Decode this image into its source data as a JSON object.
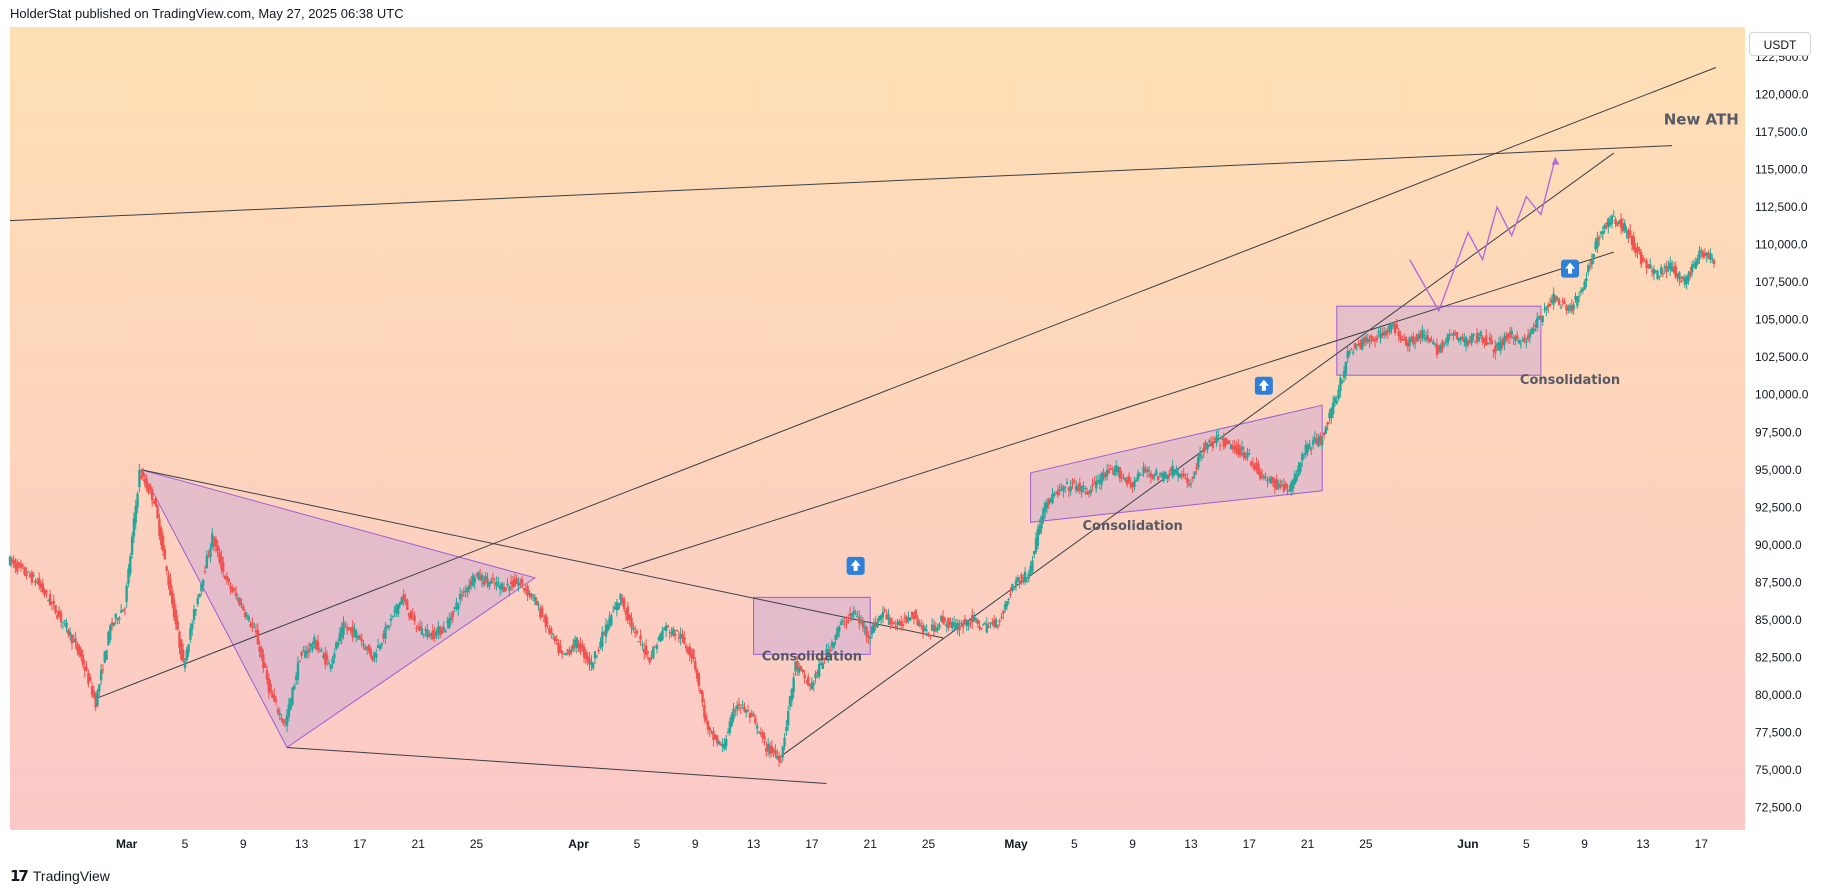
{
  "header": {
    "publisher_line": "HolderStat published on TradingView.com, May 27, 2025 06:38 UTC"
  },
  "price_scale": {
    "currency": "USDT"
  },
  "footer": {
    "brand": "TradingView",
    "logo_glyph": "17"
  },
  "colors": {
    "bull": "#26a69a",
    "bear": "#ef5350",
    "trendline": "#3b3f48",
    "pattern_fill": "#c7a3d8",
    "pattern_stroke": "#9c5fd1",
    "projection": "#b36bdc",
    "buy_signal": "#2f7fd6"
  },
  "chart_data": {
    "type": "candlestick",
    "symbol_quote": "USDT",
    "y_ticks": [
      72500,
      75000,
      77500,
      80000,
      82500,
      85000,
      87500,
      90000,
      92500,
      95000,
      97500,
      100000,
      102500,
      105000,
      107500,
      110000,
      112500,
      115000,
      117500,
      120000,
      122500
    ],
    "y_tick_labels": [
      "72,500.0",
      "75,000.0",
      "77,500.0",
      "80,000.0",
      "82,500.0",
      "85,000.0",
      "87,500.0",
      "90,000.0",
      "92,500.0",
      "95,000.0",
      "97,500.0",
      "100,000.0",
      "102,500.0",
      "105,000.0",
      "107,500.0",
      "110,000.0",
      "112,500.0",
      "115,000.0",
      "117,500.0",
      "120,000.0",
      "122,500.0"
    ],
    "ylim": [
      71000,
      124500
    ],
    "x_tick_labels": [
      {
        "label": "Mar",
        "date": "2025-03-01"
      },
      {
        "label": "5",
        "date": "2025-03-05"
      },
      {
        "label": "9",
        "date": "2025-03-09"
      },
      {
        "label": "13",
        "date": "2025-03-13"
      },
      {
        "label": "17",
        "date": "2025-03-17"
      },
      {
        "label": "21",
        "date": "2025-03-21"
      },
      {
        "label": "25",
        "date": "2025-03-25"
      },
      {
        "label": "Apr",
        "date": "2025-04-01"
      },
      {
        "label": "5",
        "date": "2025-04-05"
      },
      {
        "label": "9",
        "date": "2025-04-09"
      },
      {
        "label": "13",
        "date": "2025-04-13"
      },
      {
        "label": "17",
        "date": "2025-04-17"
      },
      {
        "label": "21",
        "date": "2025-04-21"
      },
      {
        "label": "25",
        "date": "2025-04-25"
      },
      {
        "label": "May",
        "date": "2025-05-01"
      },
      {
        "label": "5",
        "date": "2025-05-05"
      },
      {
        "label": "9",
        "date": "2025-05-09"
      },
      {
        "label": "13",
        "date": "2025-05-13"
      },
      {
        "label": "17",
        "date": "2025-05-17"
      },
      {
        "label": "21",
        "date": "2025-05-21"
      },
      {
        "label": "25",
        "date": "2025-05-25"
      },
      {
        "label": "Jun",
        "date": "2025-06-01"
      },
      {
        "label": "5",
        "date": "2025-06-05"
      },
      {
        "label": "9",
        "date": "2025-06-09"
      },
      {
        "label": "13",
        "date": "2025-06-13"
      },
      {
        "label": "17",
        "date": "2025-06-17"
      }
    ],
    "xlim": [
      "2025-02-21",
      "2025-06-20"
    ],
    "price_path": [
      {
        "date": "2025-02-21",
        "price": 89000
      },
      {
        "date": "2025-02-23",
        "price": 87500
      },
      {
        "date": "2025-02-25",
        "price": 84500
      },
      {
        "date": "2025-02-26",
        "price": 82500
      },
      {
        "date": "2025-02-27",
        "price": 79500
      },
      {
        "date": "2025-02-28",
        "price": 84500
      },
      {
        "date": "2025-03-01",
        "price": 86000
      },
      {
        "date": "2025-03-02",
        "price": 94800
      },
      {
        "date": "2025-03-03",
        "price": 93000
      },
      {
        "date": "2025-03-04",
        "price": 87500
      },
      {
        "date": "2025-03-05",
        "price": 82000
      },
      {
        "date": "2025-03-06",
        "price": 86500
      },
      {
        "date": "2025-03-07",
        "price": 90500
      },
      {
        "date": "2025-03-08",
        "price": 87500
      },
      {
        "date": "2025-03-09",
        "price": 86000
      },
      {
        "date": "2025-03-10",
        "price": 84000
      },
      {
        "date": "2025-03-11",
        "price": 80000
      },
      {
        "date": "2025-03-12",
        "price": 78000
      },
      {
        "date": "2025-03-13",
        "price": 82500
      },
      {
        "date": "2025-03-14",
        "price": 83500
      },
      {
        "date": "2025-03-15",
        "price": 82000
      },
      {
        "date": "2025-03-16",
        "price": 84500
      },
      {
        "date": "2025-03-17",
        "price": 84000
      },
      {
        "date": "2025-03-18",
        "price": 82500
      },
      {
        "date": "2025-03-19",
        "price": 84500
      },
      {
        "date": "2025-03-20",
        "price": 86500
      },
      {
        "date": "2025-03-21",
        "price": 84500
      },
      {
        "date": "2025-03-22",
        "price": 84000
      },
      {
        "date": "2025-03-23",
        "price": 84500
      },
      {
        "date": "2025-03-24",
        "price": 86500
      },
      {
        "date": "2025-03-25",
        "price": 88000
      },
      {
        "date": "2025-03-26",
        "price": 87500
      },
      {
        "date": "2025-03-27",
        "price": 87200
      },
      {
        "date": "2025-03-28",
        "price": 87500
      },
      {
        "date": "2025-03-29",
        "price": 86500
      },
      {
        "date": "2025-03-30",
        "price": 84500
      },
      {
        "date": "2025-03-31",
        "price": 82500
      },
      {
        "date": "2025-04-01",
        "price": 83500
      },
      {
        "date": "2025-04-02",
        "price": 82000
      },
      {
        "date": "2025-04-03",
        "price": 84500
      },
      {
        "date": "2025-04-04",
        "price": 86500
      },
      {
        "date": "2025-04-05",
        "price": 84000
      },
      {
        "date": "2025-04-06",
        "price": 82500
      },
      {
        "date": "2025-04-07",
        "price": 84500
      },
      {
        "date": "2025-04-08",
        "price": 84000
      },
      {
        "date": "2025-04-09",
        "price": 82500
      },
      {
        "date": "2025-04-10",
        "price": 77500
      },
      {
        "date": "2025-04-11",
        "price": 76500
      },
      {
        "date": "2025-04-12",
        "price": 79500
      },
      {
        "date": "2025-04-13",
        "price": 78500
      },
      {
        "date": "2025-04-14",
        "price": 76500
      },
      {
        "date": "2025-04-15",
        "price": 75800
      },
      {
        "date": "2025-04-16",
        "price": 82000
      },
      {
        "date": "2025-04-17",
        "price": 80500
      },
      {
        "date": "2025-04-18",
        "price": 82500
      },
      {
        "date": "2025-04-19",
        "price": 84500
      },
      {
        "date": "2025-04-20",
        "price": 85500
      },
      {
        "date": "2025-04-21",
        "price": 84000
      },
      {
        "date": "2025-04-22",
        "price": 85500
      },
      {
        "date": "2025-04-23",
        "price": 84500
      },
      {
        "date": "2025-04-24",
        "price": 85500
      },
      {
        "date": "2025-04-25",
        "price": 84000
      },
      {
        "date": "2025-04-26",
        "price": 85000
      },
      {
        "date": "2025-04-27",
        "price": 84500
      },
      {
        "date": "2025-04-28",
        "price": 85000
      },
      {
        "date": "2025-04-29",
        "price": 84500
      },
      {
        "date": "2025-04-30",
        "price": 85000
      },
      {
        "date": "2025-05-01",
        "price": 87500
      },
      {
        "date": "2025-05-02",
        "price": 88000
      },
      {
        "date": "2025-05-03",
        "price": 92500
      },
      {
        "date": "2025-05-04",
        "price": 93500
      },
      {
        "date": "2025-05-05",
        "price": 94000
      },
      {
        "date": "2025-05-06",
        "price": 93500
      },
      {
        "date": "2025-05-07",
        "price": 94500
      },
      {
        "date": "2025-05-08",
        "price": 95000
      },
      {
        "date": "2025-05-09",
        "price": 94000
      },
      {
        "date": "2025-05-10",
        "price": 95000
      },
      {
        "date": "2025-05-11",
        "price": 94500
      },
      {
        "date": "2025-05-12",
        "price": 95000
      },
      {
        "date": "2025-05-13",
        "price": 94000
      },
      {
        "date": "2025-05-14",
        "price": 96500
      },
      {
        "date": "2025-05-15",
        "price": 97000
      },
      {
        "date": "2025-05-16",
        "price": 96500
      },
      {
        "date": "2025-05-17",
        "price": 96000
      },
      {
        "date": "2025-05-18",
        "price": 94500
      },
      {
        "date": "2025-05-19",
        "price": 94000
      },
      {
        "date": "2025-05-20",
        "price": 93800
      },
      {
        "date": "2025-05-21",
        "price": 96500
      },
      {
        "date": "2025-05-22",
        "price": 97000
      },
      {
        "date": "2025-05-23",
        "price": 99500
      },
      {
        "date": "2025-05-24",
        "price": 103000
      },
      {
        "date": "2025-05-25",
        "price": 103500
      },
      {
        "date": "2025-05-26",
        "price": 104000
      },
      {
        "date": "2025-05-27",
        "price": 104500
      },
      {
        "date": "2025-05-28",
        "price": 103500
      },
      {
        "date": "2025-05-29",
        "price": 104000
      },
      {
        "date": "2025-05-30",
        "price": 103000
      },
      {
        "date": "2025-05-31",
        "price": 104000
      },
      {
        "date": "2025-06-01",
        "price": 103500
      },
      {
        "date": "2025-06-02",
        "price": 104000
      },
      {
        "date": "2025-06-03",
        "price": 103000
      },
      {
        "date": "2025-06-04",
        "price": 104000
      },
      {
        "date": "2025-06-05",
        "price": 103500
      },
      {
        "date": "2025-06-06",
        "price": 105000
      },
      {
        "date": "2025-06-07",
        "price": 106500
      },
      {
        "date": "2025-06-08",
        "price": 105500
      },
      {
        "date": "2025-06-09",
        "price": 107000
      },
      {
        "date": "2025-06-10",
        "price": 110500
      },
      {
        "date": "2025-06-11",
        "price": 111800
      },
      {
        "date": "2025-06-12",
        "price": 111000
      },
      {
        "date": "2025-06-13",
        "price": 109000
      },
      {
        "date": "2025-06-14",
        "price": 108000
      },
      {
        "date": "2025-06-15",
        "price": 108500
      },
      {
        "date": "2025-06-16",
        "price": 107500
      },
      {
        "date": "2025-06-17",
        "price": 109500
      },
      {
        "date": "2025-06-18",
        "price": 109000
      }
    ],
    "annotations": [
      {
        "text": "New ATH",
        "date": "2025-06-17",
        "price": 118000,
        "size": "big"
      },
      {
        "text": "Consolidation",
        "date": "2025-04-17",
        "price": 82300
      },
      {
        "text": "Consolidation",
        "date": "2025-05-09",
        "price": 91000
      },
      {
        "text": "Consolidation",
        "date": "2025-06-08",
        "price": 100700
      }
    ]
  }
}
